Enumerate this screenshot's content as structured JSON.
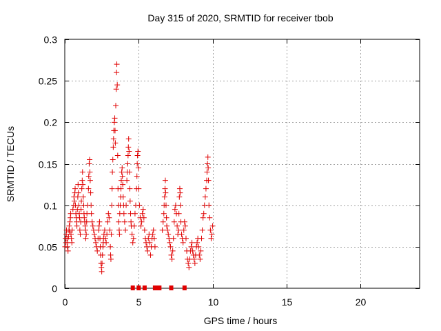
{
  "chart_data": {
    "type": "scatter",
    "title": "Day 315 of 2020, SRMTID for receiver tbob",
    "xlabel": "GPS time / hours",
    "ylabel": "SRMTID / TECUs",
    "xlim": [
      0,
      24
    ],
    "ylim": [
      0,
      0.3
    ],
    "xticks": [
      0,
      5,
      10,
      15,
      20
    ],
    "yticks": [
      0,
      0.05,
      0.1,
      0.15,
      0.2,
      0.25,
      0.3
    ],
    "xtick_labels": [
      "0",
      "5",
      "10",
      "15",
      "20"
    ],
    "ytick_labels": [
      "0",
      "0.05",
      "0.1",
      "0.15",
      "0.2",
      "0.25",
      "0.3"
    ],
    "grid": true,
    "marker": "plus",
    "color": "#e00000",
    "series": [
      {
        "name": "SRMTID",
        "points": [
          [
            0.02,
            0.05
          ],
          [
            0.05,
            0.06
          ],
          [
            0.08,
            0.055
          ],
          [
            0.1,
            0.065
          ],
          [
            0.12,
            0.07
          ],
          [
            0.15,
            0.06
          ],
          [
            0.18,
            0.05
          ],
          [
            0.2,
            0.055
          ],
          [
            0.22,
            0.045
          ],
          [
            0.25,
            0.062
          ],
          [
            0.28,
            0.07
          ],
          [
            0.3,
            0.075
          ],
          [
            0.32,
            0.068
          ],
          [
            0.35,
            0.08
          ],
          [
            0.38,
            0.085
          ],
          [
            0.4,
            0.09
          ],
          [
            0.42,
            0.065
          ],
          [
            0.45,
            0.06
          ],
          [
            0.48,
            0.055
          ],
          [
            0.5,
            0.07
          ],
          [
            0.55,
            0.095
          ],
          [
            0.6,
            0.1
          ],
          [
            0.62,
            0.11
          ],
          [
            0.65,
            0.105
          ],
          [
            0.68,
            0.115
          ],
          [
            0.7,
            0.12
          ],
          [
            0.72,
            0.1
          ],
          [
            0.75,
            0.09
          ],
          [
            0.78,
            0.085
          ],
          [
            0.8,
            0.08
          ],
          [
            0.82,
            0.075
          ],
          [
            0.85,
            0.095
          ],
          [
            0.88,
            0.11
          ],
          [
            0.9,
            0.125
          ],
          [
            0.92,
            0.115
          ],
          [
            0.95,
            0.1
          ],
          [
            0.98,
            0.09
          ],
          [
            1.0,
            0.085
          ],
          [
            1.02,
            0.07
          ],
          [
            1.05,
            0.065
          ],
          [
            1.08,
            0.08
          ],
          [
            1.1,
            0.095
          ],
          [
            1.12,
            0.105
          ],
          [
            1.15,
            0.12
          ],
          [
            1.18,
            0.13
          ],
          [
            1.2,
            0.14
          ],
          [
            1.22,
            0.125
          ],
          [
            1.25,
            0.11
          ],
          [
            1.28,
            0.1
          ],
          [
            1.3,
            0.09
          ],
          [
            1.32,
            0.085
          ],
          [
            1.35,
            0.08
          ],
          [
            1.38,
            0.075
          ],
          [
            1.4,
            0.07
          ],
          [
            1.42,
            0.06
          ],
          [
            1.45,
            0.065
          ],
          [
            1.48,
            0.08
          ],
          [
            1.5,
            0.09
          ],
          [
            1.55,
            0.1
          ],
          [
            1.6,
            0.12
          ],
          [
            1.62,
            0.135
          ],
          [
            1.65,
            0.15
          ],
          [
            1.68,
            0.155
          ],
          [
            1.7,
            0.14
          ],
          [
            1.72,
            0.13
          ],
          [
            1.75,
            0.115
          ],
          [
            1.78,
            0.1
          ],
          [
            1.8,
            0.09
          ],
          [
            1.85,
            0.08
          ],
          [
            1.9,
            0.075
          ],
          [
            1.95,
            0.07
          ],
          [
            2.0,
            0.065
          ],
          [
            2.05,
            0.06
          ],
          [
            2.1,
            0.055
          ],
          [
            2.15,
            0.05
          ],
          [
            2.2,
            0.045
          ],
          [
            2.25,
            0.06
          ],
          [
            2.3,
            0.07
          ],
          [
            2.32,
            0.075
          ],
          [
            2.35,
            0.08
          ],
          [
            2.38,
            0.06
          ],
          [
            2.4,
            0.05
          ],
          [
            2.42,
            0.04
          ],
          [
            2.45,
            0.03
          ],
          [
            2.48,
            0.025
          ],
          [
            2.5,
            0.02
          ],
          [
            2.52,
            0.03
          ],
          [
            2.55,
            0.04
          ],
          [
            2.58,
            0.05
          ],
          [
            2.6,
            0.055
          ],
          [
            2.62,
            0.06
          ],
          [
            2.65,
            0.065
          ],
          [
            2.7,
            0.07
          ],
          [
            2.75,
            0.06
          ],
          [
            2.8,
            0.055
          ],
          [
            2.85,
            0.065
          ],
          [
            2.9,
            0.08
          ],
          [
            2.95,
            0.09
          ],
          [
            3.0,
            0.085
          ],
          [
            3.05,
            0.07
          ],
          [
            3.08,
            0.05
          ],
          [
            3.1,
            0.04
          ],
          [
            3.12,
            0.035
          ],
          [
            3.15,
            0.065
          ],
          [
            3.18,
            0.1
          ],
          [
            3.2,
            0.12
          ],
          [
            3.22,
            0.14
          ],
          [
            3.25,
            0.155
          ],
          [
            3.28,
            0.17
          ],
          [
            3.3,
            0.18
          ],
          [
            3.32,
            0.19
          ],
          [
            3.35,
            0.2
          ],
          [
            3.38,
            0.205
          ],
          [
            3.4,
            0.19
          ],
          [
            3.42,
            0.175
          ],
          [
            3.45,
            0.22
          ],
          [
            3.48,
            0.24
          ],
          [
            3.5,
            0.26
          ],
          [
            3.52,
            0.27
          ],
          [
            3.55,
            0.245
          ],
          [
            3.58,
            0.16
          ],
          [
            3.6,
            0.12
          ],
          [
            3.62,
            0.1
          ],
          [
            3.65,
            0.08
          ],
          [
            3.68,
            0.07
          ],
          [
            3.7,
            0.065
          ],
          [
            3.72,
            0.09
          ],
          [
            3.75,
            0.1
          ],
          [
            3.78,
            0.11
          ],
          [
            3.8,
            0.12
          ],
          [
            3.82,
            0.13
          ],
          [
            3.85,
            0.14
          ],
          [
            3.88,
            0.145
          ],
          [
            3.9,
            0.135
          ],
          [
            3.92,
            0.125
          ],
          [
            3.95,
            0.11
          ],
          [
            3.98,
            0.1
          ],
          [
            4.0,
            0.09
          ],
          [
            4.05,
            0.08
          ],
          [
            4.1,
            0.07
          ],
          [
            4.15,
            0.1
          ],
          [
            4.2,
            0.13
          ],
          [
            4.22,
            0.14
          ],
          [
            4.25,
            0.15
          ],
          [
            4.28,
            0.16
          ],
          [
            4.3,
            0.17
          ],
          [
            4.32,
            0.18
          ],
          [
            4.35,
            0.165
          ],
          [
            4.38,
            0.14
          ],
          [
            4.4,
            0.12
          ],
          [
            4.42,
            0.105
          ],
          [
            4.45,
            0.09
          ],
          [
            4.48,
            0.08
          ],
          [
            4.5,
            0.075
          ],
          [
            4.55,
            0.065
          ],
          [
            4.6,
            0.055
          ],
          [
            4.65,
            0.06
          ],
          [
            4.7,
            0.075
          ],
          [
            4.75,
            0.09
          ],
          [
            4.8,
            0.1
          ],
          [
            4.85,
            0.12
          ],
          [
            4.88,
            0.135
          ],
          [
            4.9,
            0.15
          ],
          [
            4.92,
            0.16
          ],
          [
            4.95,
            0.165
          ],
          [
            4.98,
            0.145
          ],
          [
            5.0,
            0.12
          ],
          [
            5.05,
            0.1
          ],
          [
            5.1,
            0.085
          ],
          [
            5.15,
            0.075
          ],
          [
            5.2,
            0.08
          ],
          [
            5.25,
            0.09
          ],
          [
            5.3,
            0.095
          ],
          [
            5.35,
            0.085
          ],
          [
            5.4,
            0.07
          ],
          [
            5.45,
            0.06
          ],
          [
            5.5,
            0.055
          ],
          [
            5.55,
            0.05
          ],
          [
            5.6,
            0.045
          ],
          [
            5.65,
            0.06
          ],
          [
            5.7,
            0.065
          ],
          [
            5.75,
            0.055
          ],
          [
            5.8,
            0.04
          ],
          [
            5.85,
            0.05
          ],
          [
            5.9,
            0.06
          ],
          [
            5.95,
            0.065
          ],
          [
            6.0,
            0.07
          ],
          [
            6.05,
            0.06
          ],
          [
            6.1,
            0.05
          ],
          [
            6.6,
            0.07
          ],
          [
            6.65,
            0.08
          ],
          [
            6.7,
            0.09
          ],
          [
            6.72,
            0.1
          ],
          [
            6.75,
            0.11
          ],
          [
            6.78,
            0.12
          ],
          [
            6.8,
            0.13
          ],
          [
            6.82,
            0.115
          ],
          [
            6.85,
            0.1
          ],
          [
            6.88,
            0.085
          ],
          [
            6.9,
            0.075
          ],
          [
            6.95,
            0.07
          ],
          [
            7.0,
            0.065
          ],
          [
            7.05,
            0.06
          ],
          [
            7.1,
            0.055
          ],
          [
            7.15,
            0.05
          ],
          [
            7.2,
            0.04
          ],
          [
            7.25,
            0.035
          ],
          [
            7.3,
            0.045
          ],
          [
            7.35,
            0.06
          ],
          [
            7.4,
            0.08
          ],
          [
            7.45,
            0.095
          ],
          [
            7.5,
            0.1
          ],
          [
            7.55,
            0.09
          ],
          [
            7.6,
            0.075
          ],
          [
            7.65,
            0.065
          ],
          [
            7.7,
            0.07
          ],
          [
            7.72,
            0.09
          ],
          [
            7.75,
            0.11
          ],
          [
            7.78,
            0.12
          ],
          [
            7.8,
            0.115
          ],
          [
            7.82,
            0.1
          ],
          [
            7.85,
            0.08
          ],
          [
            7.9,
            0.065
          ],
          [
            7.95,
            0.06
          ],
          [
            8.0,
            0.055
          ],
          [
            8.05,
            0.07
          ],
          [
            8.1,
            0.08
          ],
          [
            8.15,
            0.075
          ],
          [
            8.2,
            0.06
          ],
          [
            8.25,
            0.045
          ],
          [
            8.3,
            0.035
          ],
          [
            8.35,
            0.03
          ],
          [
            8.4,
            0.025
          ],
          [
            8.45,
            0.035
          ],
          [
            8.5,
            0.045
          ],
          [
            8.55,
            0.05
          ],
          [
            8.6,
            0.055
          ],
          [
            8.65,
            0.045
          ],
          [
            8.7,
            0.04
          ],
          [
            8.75,
            0.035
          ],
          [
            8.8,
            0.03
          ],
          [
            8.85,
            0.04
          ],
          [
            8.9,
            0.05
          ],
          [
            8.95,
            0.055
          ],
          [
            9.0,
            0.06
          ],
          [
            9.05,
            0.05
          ],
          [
            9.1,
            0.04
          ],
          [
            9.15,
            0.035
          ],
          [
            9.2,
            0.045
          ],
          [
            9.25,
            0.06
          ],
          [
            9.3,
            0.07
          ],
          [
            9.35,
            0.085
          ],
          [
            9.4,
            0.09
          ],
          [
            9.45,
            0.1
          ],
          [
            9.5,
            0.11
          ],
          [
            9.55,
            0.12
          ],
          [
            9.6,
            0.13
          ],
          [
            9.62,
            0.14
          ],
          [
            9.65,
            0.15
          ],
          [
            9.68,
            0.158
          ],
          [
            9.7,
            0.145
          ],
          [
            9.72,
            0.13
          ],
          [
            9.75,
            0.1
          ],
          [
            9.8,
            0.085
          ],
          [
            9.85,
            0.07
          ],
          [
            9.9,
            0.06
          ],
          [
            9.95,
            0.065
          ],
          [
            10.0,
            0.075
          ]
        ]
      }
    ],
    "zero_points": [
      4.6,
      5.0,
      5.4,
      6.1,
      6.3,
      6.4,
      7.2,
      8.1
    ]
  }
}
